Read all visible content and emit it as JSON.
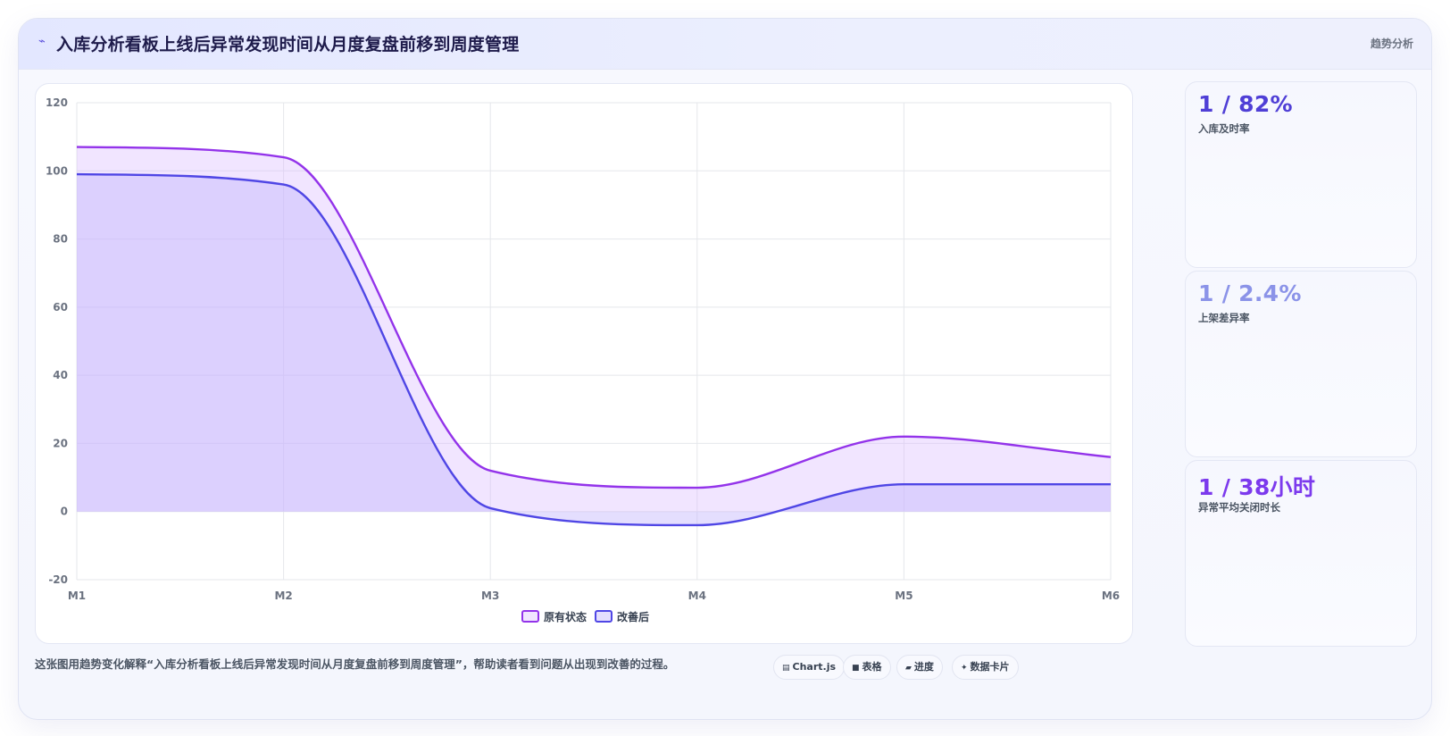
{
  "header": {
    "icon": "trend-icon",
    "title": "入库分析看板上线后异常发现时间从月度复盘前移到周度管理",
    "tag": "趋势分析"
  },
  "kpis": [
    {
      "value": "1 / 82%",
      "label": "入库及时率",
      "color": "#4f3fd6"
    },
    {
      "value": "1 / 2.4%",
      "label": "上架差异率",
      "color": "#8b93e8"
    },
    {
      "value": "1 / 38小时",
      "label": "异常平均关闭时长",
      "color": "#7c3aed"
    }
  ],
  "footer": {
    "description": "这张图用趋势变化解释“入库分析看板上线后异常发现时间从月度复盘前移到周度管理”，帮助读者看到问题从出现到改善的过程。",
    "pills": [
      {
        "icon": "chart-icon",
        "label": "Chart.js"
      },
      {
        "icon": "table-icon",
        "label": "表格"
      },
      {
        "icon": "progress-icon",
        "label": "进度"
      },
      {
        "icon": "sparkle-icon",
        "label": "数据卡片"
      }
    ]
  },
  "chart_data": {
    "type": "area",
    "categories": [
      "M1",
      "M2",
      "M3",
      "M4",
      "M5",
      "M6"
    ],
    "ylim": [
      -20,
      120
    ],
    "yticks": [
      -20,
      0,
      20,
      40,
      60,
      80,
      100,
      120
    ],
    "grid": true,
    "legend_position": "bottom",
    "series": [
      {
        "name": "原有状态",
        "values": [
          107,
          104,
          12,
          7,
          22,
          16
        ],
        "color": "#9333ea",
        "fill": "rgba(216,180,254,0.35)"
      },
      {
        "name": "改善后",
        "values": [
          99,
          96,
          1,
          -4,
          8,
          8
        ],
        "color": "#4f46e5",
        "fill": "rgba(196,181,253,0.45)"
      }
    ]
  }
}
